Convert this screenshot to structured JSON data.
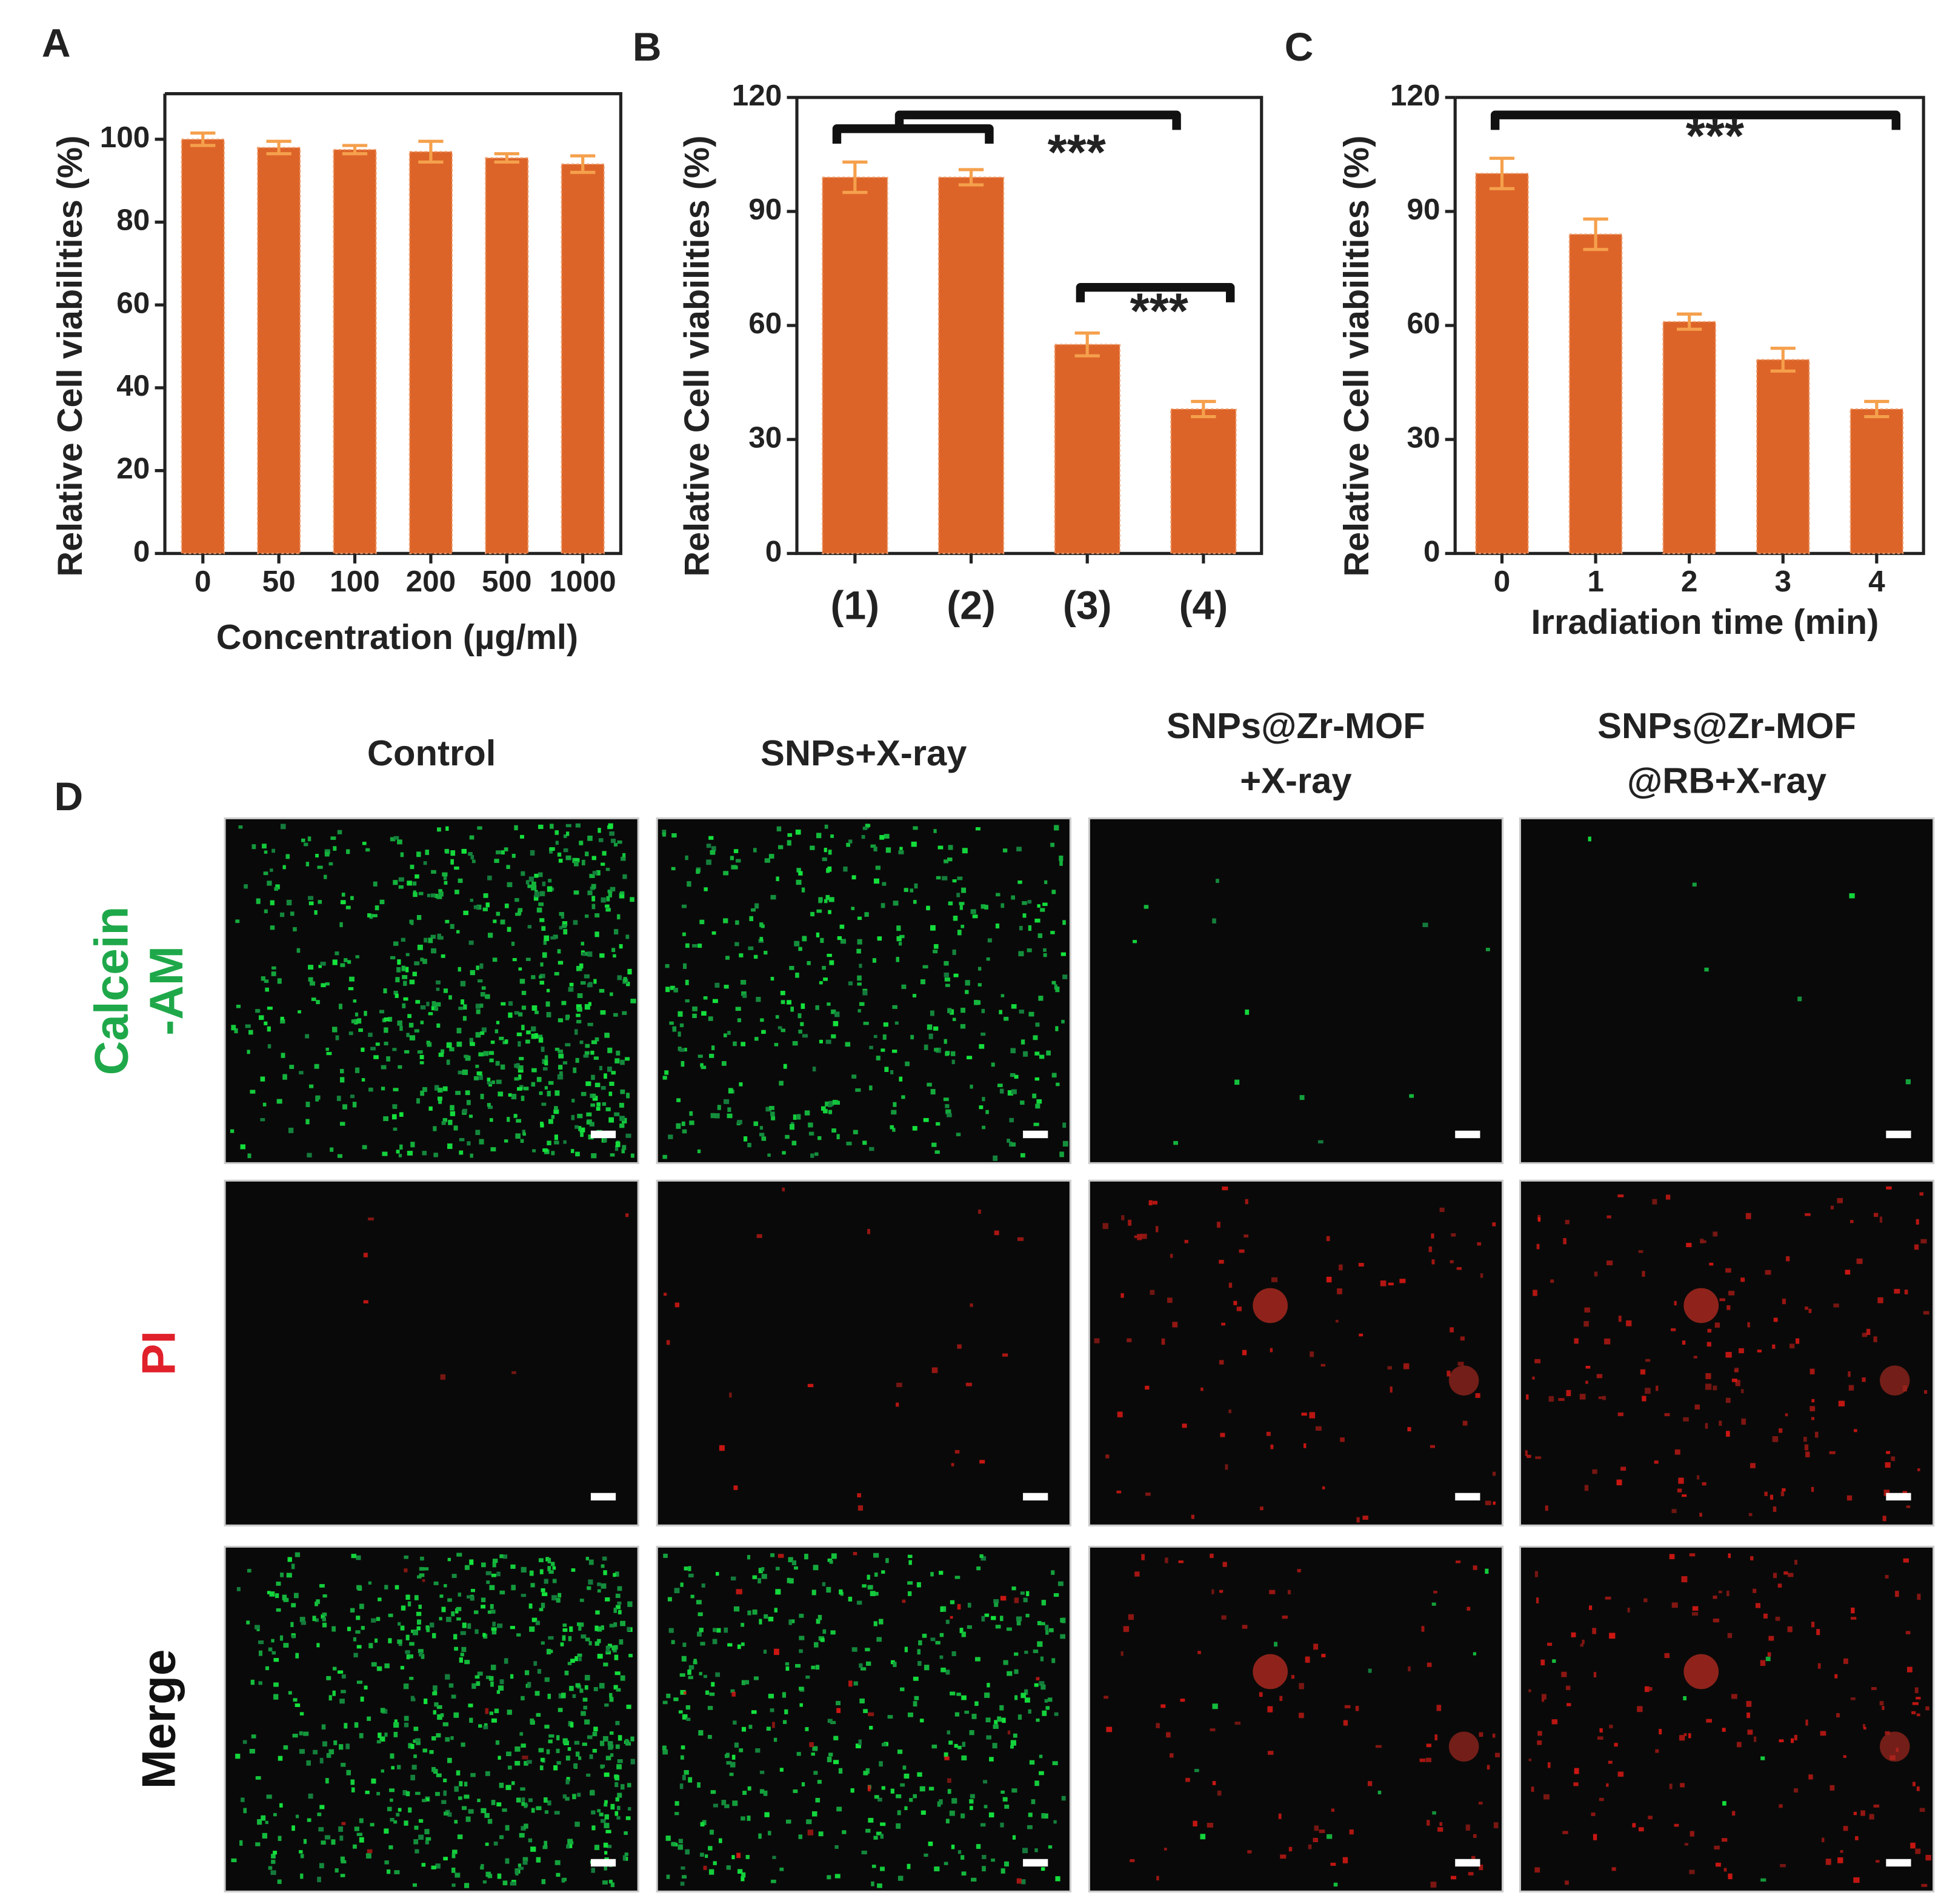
{
  "chart_data": [
    {
      "type": "bar",
      "label": "A",
      "ylabel": "Relative Cell viabilities (%)",
      "xlabel": "Concentration (µg/ml)",
      "categories": [
        "0",
        "50",
        "100",
        "200",
        "500",
        "1000"
      ],
      "values": [
        100,
        98,
        97.5,
        97,
        95.5,
        94
      ],
      "errors": [
        1.5,
        1.5,
        1,
        2.5,
        1,
        2
      ],
      "color": "#dd6428",
      "error_color": "#f5a04c",
      "ylim": [
        0,
        111
      ],
      "yticks": [
        0,
        20,
        40,
        60,
        80,
        100
      ]
    },
    {
      "type": "bar",
      "label": "B",
      "ylabel": "Relative Cell viabilities (%)",
      "categories": [
        "(1)",
        "(2)",
        "(3)",
        "(4)"
      ],
      "values": [
        99,
        99,
        55,
        38
      ],
      "errors": [
        4,
        2,
        3,
        2
      ],
      "color": "#dd6428",
      "error_color": "#f5a04c",
      "ylim": [
        0,
        120
      ],
      "yticks": [
        0,
        30,
        60,
        90,
        120
      ],
      "annotations": [
        "***",
        "***"
      ]
    },
    {
      "type": "bar",
      "label": "C",
      "ylabel": "Relative Cell viabilities (%)",
      "xlabel": "Irradiation time (min)",
      "categories": [
        "0",
        "1",
        "2",
        "3",
        "4"
      ],
      "values": [
        100,
        84,
        61,
        51,
        38
      ],
      "errors": [
        4,
        4,
        2,
        3,
        2
      ],
      "color": "#dd6428",
      "error_color": "#f5a04c",
      "ylim": [
        0,
        120
      ],
      "yticks": [
        0,
        30,
        60,
        90,
        120
      ],
      "annotations": [
        "***"
      ]
    }
  ],
  "panel_d": {
    "label": "D",
    "columns": [
      [
        "Control"
      ],
      [
        "SNPs+X-ray"
      ],
      [
        "SNPs@Zr-MOF",
        "+X-ray"
      ],
      [
        "SNPs@Zr-MOF",
        "@RB+X-ray"
      ]
    ],
    "rows": [
      [
        "Calcein",
        "-AM"
      ],
      [
        "PI"
      ],
      [
        "Merge"
      ]
    ]
  }
}
